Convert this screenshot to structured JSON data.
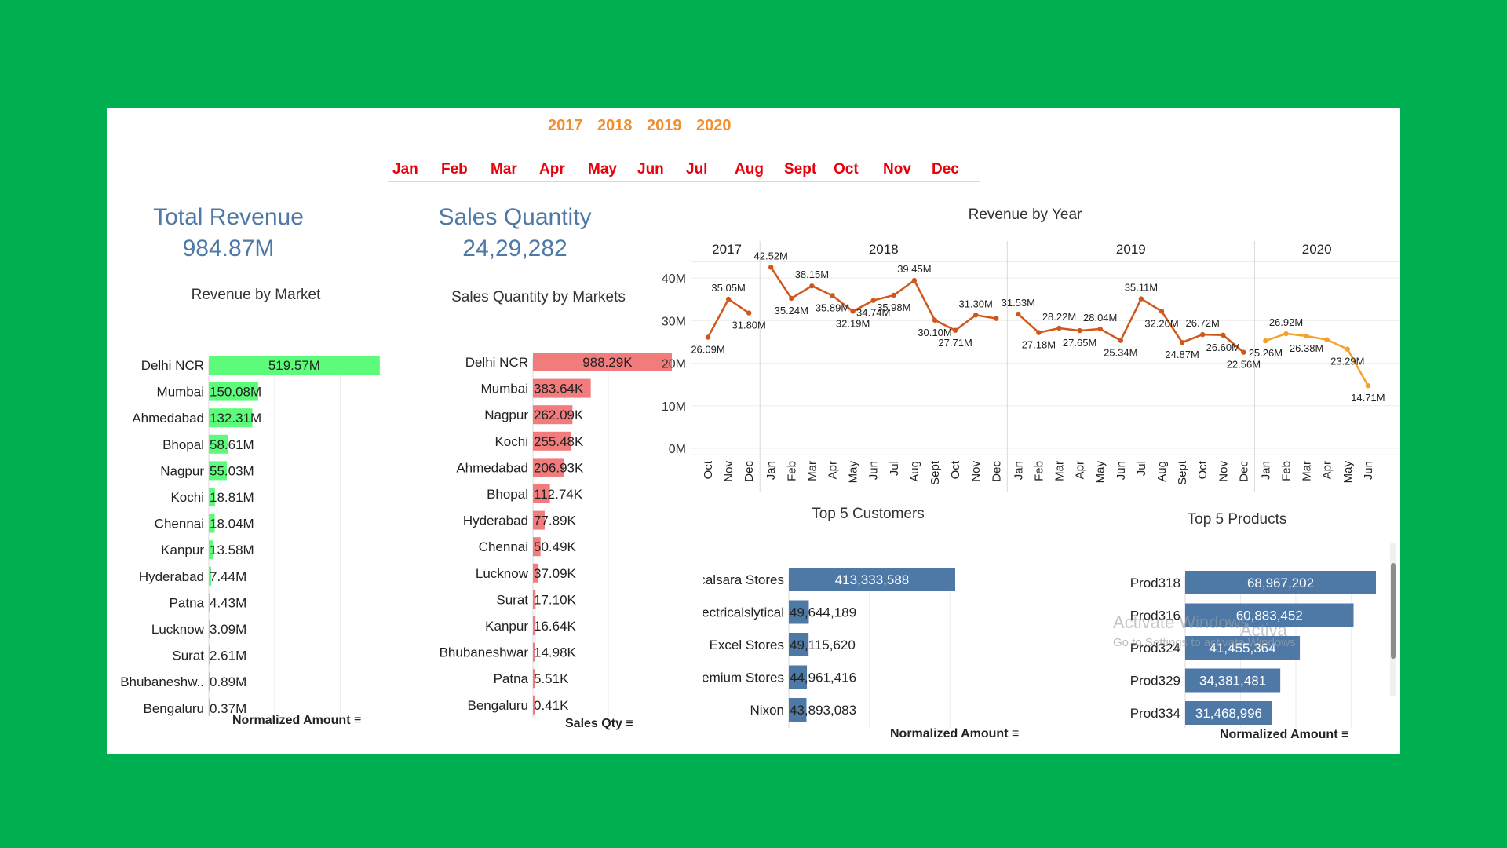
{
  "filters": {
    "years": [
      "2017",
      "2018",
      "2019",
      "2020"
    ],
    "months": [
      "Jan",
      "Feb",
      "Mar",
      "Apr",
      "May",
      "Jun",
      "Jul",
      "Aug",
      "Sept",
      "Oct",
      "Nov",
      "Dec"
    ],
    "year_color": "#f28e2b",
    "month_color": "#e8000b"
  },
  "kpis": {
    "revenue_title": "Total Revenue",
    "revenue_value": "984.87M",
    "quantity_title": "Sales Quantity",
    "quantity_value": "24,29,282"
  },
  "colors": {
    "market_bar": "#5cfc7a",
    "qty_bar": "#f27b7b",
    "blue_bar": "#4e79a7",
    "line_dark": "#d0571b",
    "line_light": "#f5a12a",
    "kpi_text": "#4e79a7",
    "background": "#00b050"
  },
  "chart_data": [
    {
      "type": "bar",
      "title": "Revenue by Market",
      "categories": [
        "Delhi NCR",
        "Mumbai",
        "Ahmedabad",
        "Bhopal",
        "Nagpur",
        "Kochi",
        "Chennai",
        "Kanpur",
        "Hyderabad",
        "Patna",
        "Lucknow",
        "Surat",
        "Bhubaneshw..",
        "Bengaluru"
      ],
      "values": [
        519.57,
        150.08,
        132.31,
        58.61,
        55.03,
        18.81,
        18.04,
        13.58,
        7.44,
        4.43,
        3.09,
        2.61,
        0.89,
        0.37
      ],
      "labels": [
        "519.57M",
        "150.08M",
        "132.31M",
        "58.61M",
        "55.03M",
        "18.81M",
        "18.04M",
        "13.58M",
        "7.44M",
        "4.43M",
        "3.09M",
        "2.61M",
        "0.89M",
        "0.37M"
      ],
      "xticks": [
        "0M",
        "200M",
        "400M"
      ],
      "xtick_values": [
        0,
        200,
        400
      ],
      "xlim": [
        0,
        520
      ],
      "xlabel": "Normalized Amount"
    },
    {
      "type": "bar",
      "title": "Sales Quantity by Markets",
      "categories": [
        "Delhi NCR",
        "Mumbai",
        "Nagpur",
        "Kochi",
        "Ahmedabad",
        "Bhopal",
        "Hyderabad",
        "Chennai",
        "Lucknow",
        "Surat",
        "Kanpur",
        "Bhubaneshwar",
        "Patna",
        "Bengaluru"
      ],
      "values": [
        988.29,
        383.64,
        262.09,
        255.48,
        206.93,
        112.74,
        77.89,
        50.49,
        37.09,
        17.1,
        16.64,
        14.98,
        5.51,
        0.41
      ],
      "labels": [
        "988.29K",
        "383.64K",
        "262.09K",
        "255.48K",
        "206.93K",
        "112.74K",
        "77.89K",
        "50.49K",
        "37.09K",
        "17.10K",
        "16.64K",
        "14.98K",
        "5.51K",
        "0.41K"
      ],
      "xticks": [
        "0K",
        "500K",
        "1000K"
      ],
      "xtick_values": [
        0,
        500,
        1000
      ],
      "xlim": [
        0,
        1000
      ],
      "xlabel": "Sales Qty"
    },
    {
      "type": "line",
      "title": "Revenue by Year",
      "yticks": [
        "0M",
        "10M",
        "20M",
        "30M",
        "40M"
      ],
      "ytick_values": [
        0,
        10,
        20,
        30,
        40
      ],
      "ylim": [
        0,
        45
      ],
      "panels": [
        {
          "year": "2017",
          "months": [
            "Oct",
            "Nov",
            "Dec"
          ],
          "values": [
            26.09,
            35.05,
            31.8
          ],
          "labels": [
            "26.09M",
            "35.05M",
            "31.80M"
          ]
        },
        {
          "year": "2018",
          "months": [
            "Jan",
            "Feb",
            "Mar",
            "Apr",
            "May",
            "Jun",
            "Jul",
            "Aug",
            "Sept",
            "Oct",
            "Nov",
            "Dec"
          ],
          "values": [
            42.52,
            35.24,
            38.15,
            35.89,
            32.19,
            34.74,
            35.98,
            39.45,
            30.1,
            27.71,
            31.3,
            30.5
          ],
          "labels": [
            "42.52M",
            "35.24M",
            "38.15M",
            "35.89M",
            "32.19M",
            "34.74M",
            "35.98M",
            "39.45M",
            "30.10M",
            "27.71M",
            "31.30M",
            ""
          ]
        },
        {
          "year": "2019",
          "months": [
            "Jan",
            "Feb",
            "Mar",
            "Apr",
            "May",
            "Jun",
            "Jul",
            "Aug",
            "Sept",
            "Oct",
            "Nov",
            "Dec"
          ],
          "values": [
            31.53,
            27.18,
            28.22,
            27.65,
            28.04,
            25.34,
            35.11,
            32.2,
            24.87,
            26.72,
            26.6,
            22.56
          ],
          "labels": [
            "31.53M",
            "27.18M",
            "28.22M",
            "27.65M",
            "28.04M",
            "25.34M",
            "35.11M",
            "32.20M",
            "24.87M",
            "26.72M",
            "26.60M",
            "22.56M"
          ]
        },
        {
          "year": "2020",
          "months": [
            "Jan",
            "Feb",
            "Mar",
            "Apr",
            "May",
            "Jun"
          ],
          "values": [
            25.26,
            26.92,
            26.38,
            25.5,
            23.29,
            14.71
          ],
          "labels": [
            "25.26M",
            "26.92M",
            "26.38M",
            "",
            "23.29M",
            "14.71M"
          ]
        }
      ]
    },
    {
      "type": "bar",
      "title": "Top 5 Customers",
      "categories": [
        "Electricalsara Stores",
        "Electricalslytical",
        "Excel Stores",
        "Premium Stores",
        "Nixon"
      ],
      "values": [
        413333588,
        49644189,
        49115620,
        44961416,
        43893083
      ],
      "labels": [
        "413,333,588",
        "49,644,189",
        "49,115,620",
        "44,961,416",
        "43,893,083"
      ],
      "xticks": [
        "0M",
        "200M",
        "400M"
      ],
      "xtick_values": [
        0,
        200000000,
        400000000
      ],
      "xlim": [
        0,
        413333588
      ],
      "xlabel": "Normalized Amount"
    },
    {
      "type": "bar",
      "title": "Top 5 Products",
      "categories": [
        "Prod318",
        "Prod316",
        "Prod324",
        "Prod329",
        "Prod334"
      ],
      "values": [
        68967202,
        60883452,
        41455364,
        34381481,
        31468996
      ],
      "labels": [
        "68,967,202",
        "60,883,452",
        "41,455,364",
        "34,381,481",
        "31,468,996"
      ],
      "xticks": [
        "0M",
        "20M",
        "40M",
        "60M"
      ],
      "xtick_values": [
        0,
        20000000,
        40000000,
        60000000
      ],
      "xlim": [
        0,
        68967202
      ],
      "xlabel": "Normalized Amount"
    }
  ],
  "watermark": {
    "line1": "Activate Windows",
    "line2": "Go to Settings to activate Windows.",
    "overlap": "Activa"
  }
}
